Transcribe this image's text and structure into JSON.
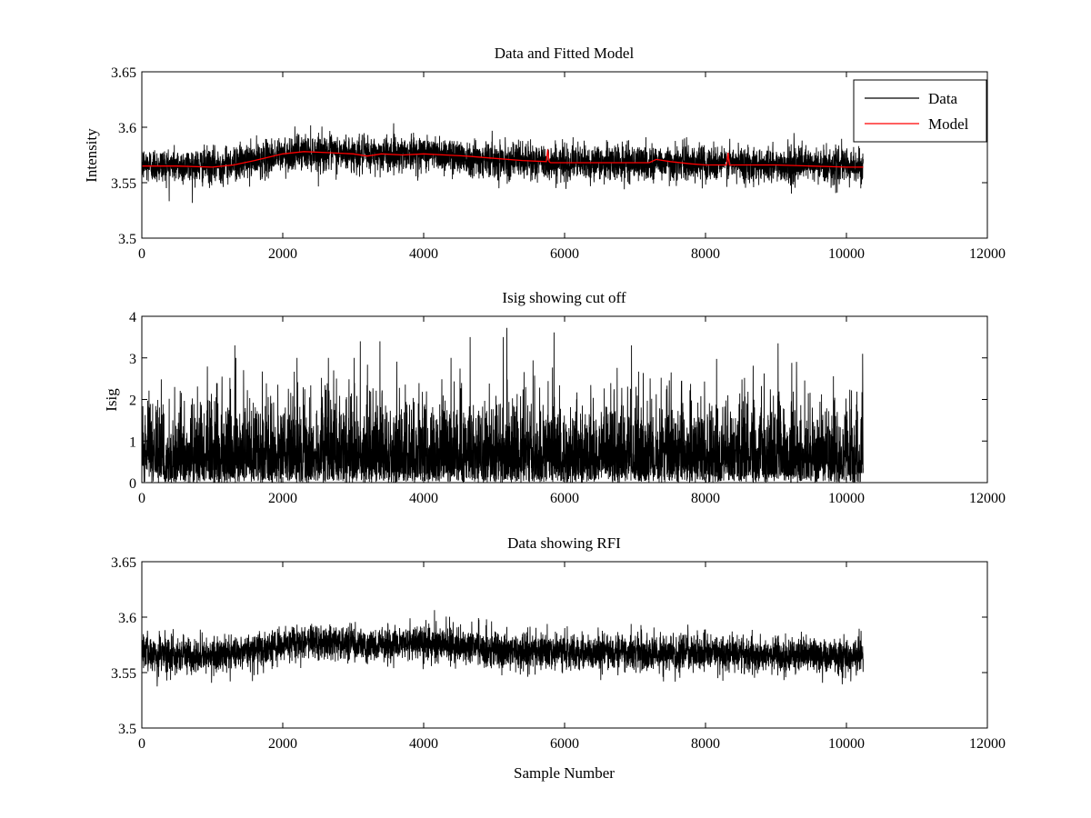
{
  "chart_data": [
    {
      "type": "line",
      "title": "Data and Fitted Model",
      "xlabel": "",
      "ylabel": "Intensity",
      "xlim": [
        0,
        12000
      ],
      "ylim": [
        3.5,
        3.65
      ],
      "xticks": [
        "0",
        "2000",
        "4000",
        "6000",
        "8000",
        "10000",
        "12000"
      ],
      "yticks": [
        "3.5",
        "3.55",
        "3.6",
        "3.65"
      ],
      "legend_position": "top-right",
      "grid": false,
      "series": [
        {
          "name": "Data",
          "color": "#000000",
          "style": "noisy",
          "n_samples": 10240,
          "noise_sd": 0.008,
          "baseline": {
            "x": [
              0,
              1000,
              1600,
              2000,
              2300,
              2700,
              3100,
              3500,
              4000,
              4500,
              5000,
              5500,
              6000,
              7000,
              8000,
              9000,
              10240
            ],
            "y": [
              3.566,
              3.565,
              3.57,
              3.575,
              3.578,
              3.577,
              3.575,
              3.576,
              3.577,
              3.574,
              3.571,
              3.569,
              3.568,
              3.568,
              3.568,
              3.566,
              3.565
            ]
          }
        },
        {
          "name": "Model",
          "color": "#ff0000",
          "x": [
            0,
            500,
            1000,
            1300,
            1600,
            2000,
            2300,
            2700,
            3000,
            3200,
            3400,
            3700,
            4000,
            4300,
            4600,
            5000,
            5400,
            5740,
            5760,
            5780,
            5800,
            6000,
            6600,
            7200,
            7300,
            7500,
            7800,
            8000,
            8300,
            8320,
            8340,
            8360,
            8600,
            9000,
            9500,
            10000,
            10240
          ],
          "y": [
            3.565,
            3.565,
            3.564,
            3.566,
            3.57,
            3.576,
            3.578,
            3.577,
            3.576,
            3.574,
            3.576,
            3.575,
            3.576,
            3.575,
            3.574,
            3.572,
            3.57,
            3.569,
            3.58,
            3.569,
            3.568,
            3.568,
            3.568,
            3.568,
            3.571,
            3.569,
            3.567,
            3.566,
            3.566,
            3.577,
            3.566,
            3.566,
            3.566,
            3.566,
            3.565,
            3.564,
            3.564
          ]
        }
      ]
    },
    {
      "type": "line",
      "title": "Isig showing cut off",
      "xlabel": "",
      "ylabel": "Isig",
      "xlim": [
        0,
        12000
      ],
      "ylim": [
        0,
        4
      ],
      "xticks": [
        "0",
        "2000",
        "4000",
        "6000",
        "8000",
        "10000",
        "12000"
      ],
      "yticks": [
        "0",
        "1",
        "2",
        "3",
        "4"
      ],
      "grid": false,
      "series": [
        {
          "color": "#000000",
          "style": "noisy-abs",
          "n_samples": 10240,
          "scale": 0.9,
          "peaks": {
            "x": [
              5180,
              5850,
              5130,
              4660,
              3380,
              9030,
              1320,
              3100,
              6950,
              10230
            ],
            "y": [
              3.72,
              3.61,
              3.5,
              3.5,
              3.4,
              3.35,
              3.3,
              3.4,
              3.3,
              3.1
            ]
          }
        }
      ]
    },
    {
      "type": "line",
      "title": "Data showing RFI",
      "xlabel": "Sample Number",
      "ylabel": "",
      "xlim": [
        0,
        12000
      ],
      "ylim": [
        3.5,
        3.65
      ],
      "xticks": [
        "0",
        "2000",
        "4000",
        "6000",
        "8000",
        "10000",
        "12000"
      ],
      "yticks": [
        "3.5",
        "3.55",
        "3.6",
        "3.65"
      ],
      "grid": false,
      "series": [
        {
          "color": "#000000",
          "style": "noisy",
          "n_samples": 10240,
          "noise_sd": 0.008,
          "baseline": {
            "x": [
              0,
              1000,
              1600,
              2000,
              2300,
              2700,
              3100,
              3500,
              4000,
              4500,
              5000,
              5500,
              6000,
              7000,
              8000,
              9000,
              10240
            ],
            "y": [
              3.566,
              3.565,
              3.57,
              3.575,
              3.578,
              3.577,
              3.575,
              3.576,
              3.577,
              3.574,
              3.571,
              3.569,
              3.568,
              3.568,
              3.568,
              3.566,
              3.565
            ]
          }
        }
      ]
    }
  ]
}
